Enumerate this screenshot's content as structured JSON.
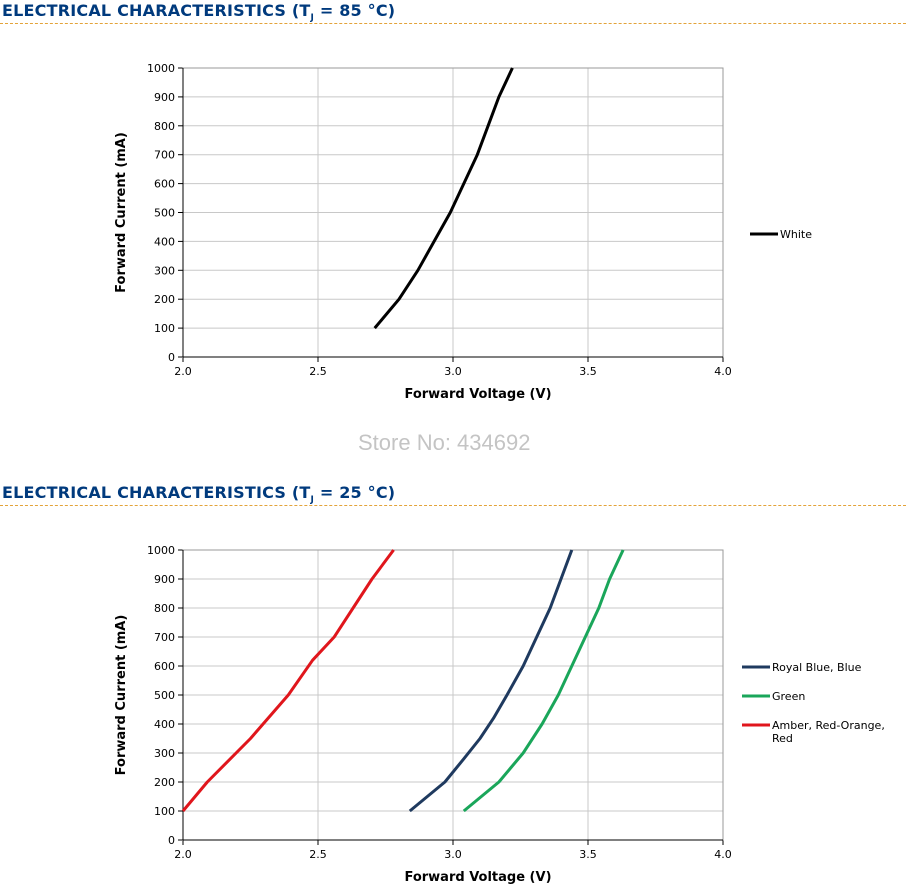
{
  "sections": [
    {
      "title_pre": "ELECTRICAL CHARACTERISTICS (T",
      "title_sub": "J",
      "title_post": " = 85 °C)"
    },
    {
      "title_pre": "ELECTRICAL CHARACTERISTICS (T",
      "title_sub": "J",
      "title_post": " = 25 °C)"
    }
  ],
  "watermark": "Store No: 434692",
  "chart_data": [
    {
      "type": "line",
      "xlabel": "Forward Voltage (V)",
      "ylabel": "Forward Current (mA)",
      "xlim": [
        2.0,
        4.0
      ],
      "ylim": [
        0,
        1000
      ],
      "xticks": [
        "2.0",
        "2.5",
        "3.0",
        "3.5",
        "4.0"
      ],
      "yticks": [
        "0",
        "100",
        "200",
        "300",
        "400",
        "500",
        "600",
        "700",
        "800",
        "900",
        "1000"
      ],
      "grid": true,
      "legend": "right",
      "series": [
        {
          "name": "White",
          "color": "#000000",
          "x": [
            2.71,
            2.8,
            2.87,
            2.93,
            2.99,
            3.04,
            3.09,
            3.13,
            3.17,
            3.22
          ],
          "y": [
            100,
            200,
            300,
            400,
            500,
            600,
            700,
            800,
            900,
            1000
          ]
        }
      ]
    },
    {
      "type": "line",
      "xlabel": "Forward Voltage (V)",
      "ylabel": "Forward Current (mA)",
      "xlim": [
        2.0,
        4.0
      ],
      "ylim": [
        0,
        1000
      ],
      "xticks": [
        "2.0",
        "2.5",
        "3.0",
        "3.5",
        "4.0"
      ],
      "yticks": [
        "0",
        "100",
        "200",
        "300",
        "400",
        "500",
        "600",
        "700",
        "800",
        "900",
        "1000"
      ],
      "grid": true,
      "legend": "right",
      "series": [
        {
          "name": "Royal Blue, Blue",
          "color": "#1f3a5f",
          "x": [
            2.84,
            2.97,
            3.04,
            3.1,
            3.15,
            3.2,
            3.26,
            3.31,
            3.36,
            3.4,
            3.44
          ],
          "y": [
            100,
            200,
            280,
            350,
            420,
            500,
            600,
            700,
            800,
            900,
            1000
          ]
        },
        {
          "name": "Green",
          "color": "#1aa65a",
          "x": [
            3.04,
            3.17,
            3.26,
            3.33,
            3.39,
            3.44,
            3.49,
            3.54,
            3.58,
            3.63
          ],
          "y": [
            100,
            200,
            300,
            400,
            500,
            600,
            700,
            800,
            900,
            1000
          ]
        },
        {
          "name_lines": [
            "Amber, Red-Orange,",
            "Red"
          ],
          "color": "#e0161c",
          "x": [
            2.0,
            2.09,
            2.25,
            2.39,
            2.48,
            2.56,
            2.63,
            2.7,
            2.78
          ],
          "y": [
            100,
            200,
            350,
            500,
            620,
            700,
            800,
            900,
            1000
          ]
        }
      ]
    }
  ]
}
